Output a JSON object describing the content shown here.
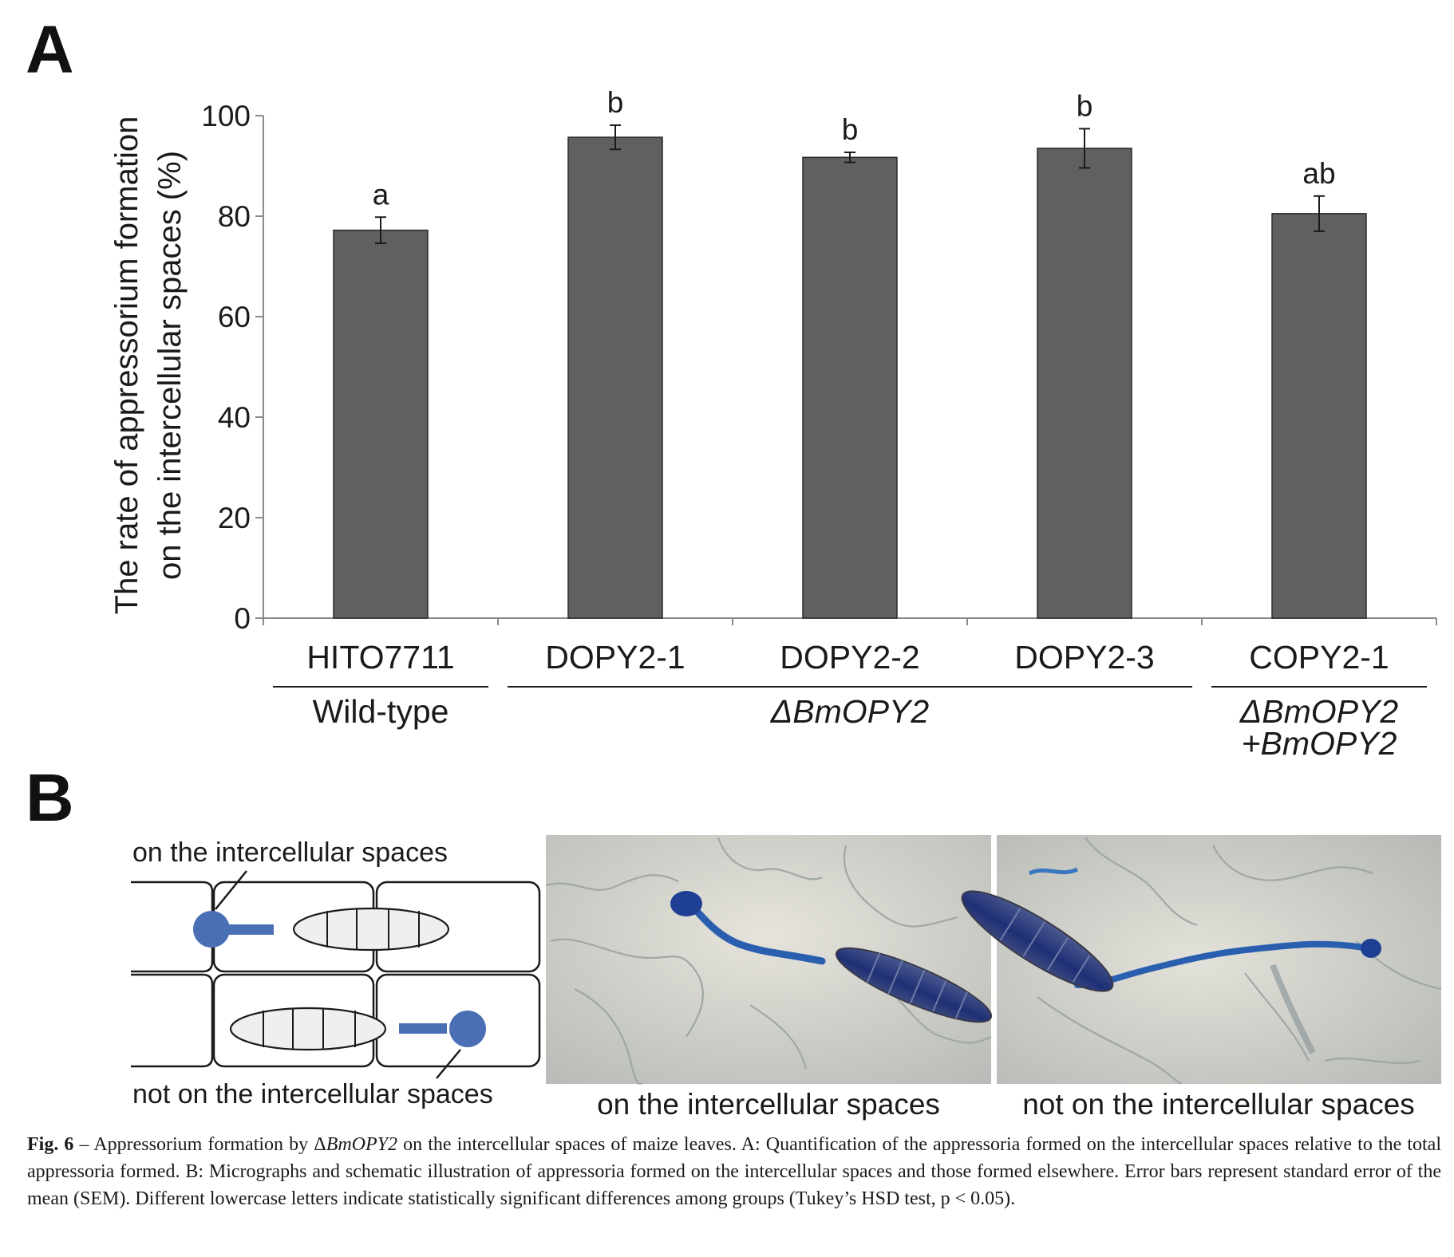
{
  "panels": {
    "a_label": "A",
    "b_label": "B"
  },
  "chart_data": {
    "type": "bar",
    "categories": [
      "HITO7711",
      "DOPY2-1",
      "DOPY2-2",
      "DOPY2-3",
      "COPY2-1"
    ],
    "values": [
      77.2,
      95.7,
      91.7,
      93.5,
      80.5
    ],
    "errors": [
      2.6,
      2.4,
      1.0,
      3.9,
      3.5
    ],
    "significance_letters": [
      "a",
      "b",
      "b",
      "b",
      "ab"
    ],
    "ylabel_line1": "The rate of appressorium formation",
    "ylabel_line2": "on the intercellular spaces (%)",
    "ylim": [
      0,
      100
    ],
    "yticks": [
      0,
      20,
      40,
      60,
      80,
      100
    ],
    "bar_color": "#606060",
    "groups": [
      {
        "label": "Wild-type",
        "italic": false,
        "members": [
          0
        ]
      },
      {
        "label": "ΔBmOPY2",
        "italic": true,
        "members": [
          1,
          2,
          3
        ]
      },
      {
        "label_line1": "ΔBmOPY2",
        "label_line2": "+BmOPY2",
        "italic": true,
        "members": [
          4
        ]
      }
    ],
    "grid": false
  },
  "schematic": {
    "label_top": "on the intercellular spaces",
    "label_bottom": "not on the intercellular spaces",
    "appressorium_color": "#4a6fb5"
  },
  "micrographs": [
    {
      "caption": "on the intercellular spaces"
    },
    {
      "caption": "not on the intercellular spaces"
    }
  ],
  "caption": {
    "fig_label": "Fig. 6",
    "text_before_italic": " – Appressorium formation by Δ",
    "italic": "BmOPY2",
    "text_after_italic": " on the intercellular spaces of maize leaves. A: Quantification of the appressoria formed on the intercellular spaces relative to the total appressoria formed. B: Micrographs and schematic illustration of appressoria formed on the intercellular spaces and those formed elsewhere. Error bars represent standard error of the mean (SEM). Different lowercase letters indicate statistically significant differences among groups (Tukey’s HSD test, p < 0.05)."
  }
}
